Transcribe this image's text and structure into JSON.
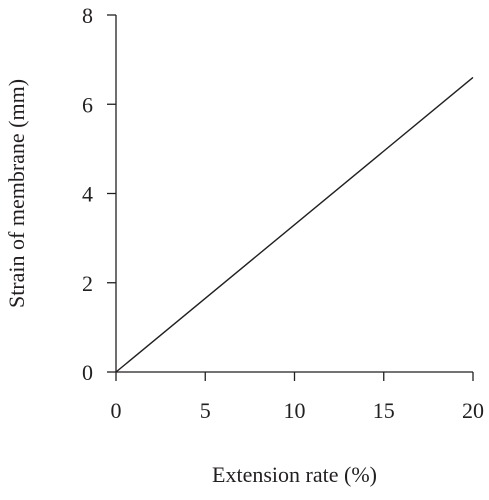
{
  "chart_data": {
    "type": "line",
    "title": "",
    "xlabel": "Extension rate (%)",
    "ylabel": "Strain of membrane (mm)",
    "xlim": [
      0,
      20
    ],
    "ylim": [
      0,
      8
    ],
    "xticks": [
      0,
      5,
      10,
      15,
      20
    ],
    "yticks": [
      0,
      2,
      4,
      6,
      8
    ],
    "grid": false,
    "legend": "none",
    "series": [
      {
        "x": [
          0,
          20
        ],
        "y": [
          0,
          6.6
        ],
        "color": "#231f20"
      }
    ]
  }
}
